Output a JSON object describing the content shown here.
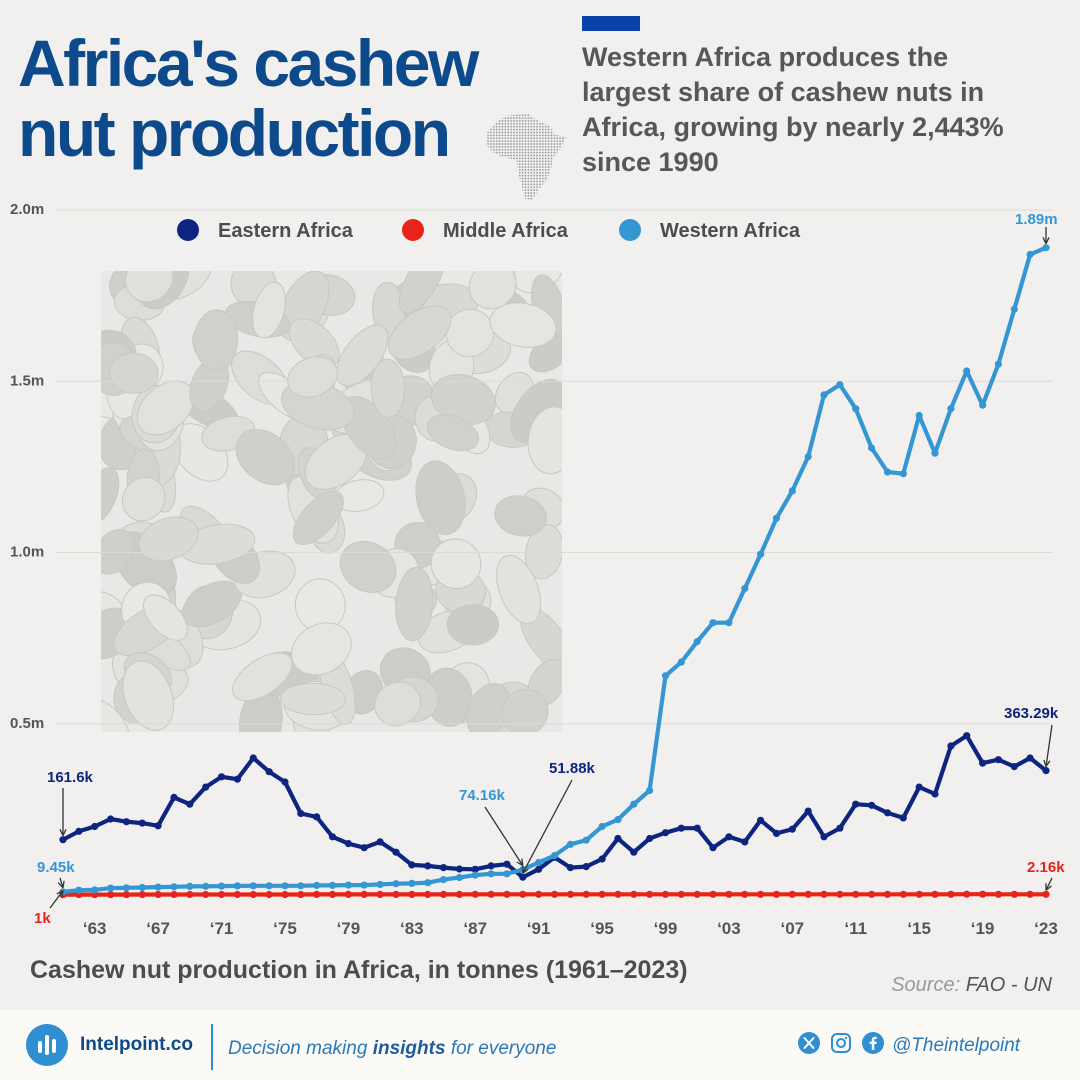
{
  "header": {
    "title_line1": "Africa's cashew",
    "title_line2": "nut production",
    "subtitle_line1": "Western Africa produces the",
    "subtitle_line2": "largest share of cashew nuts in",
    "subtitle_line3": "Africa, growing by nearly 2,443%",
    "subtitle_line4": "since 1990"
  },
  "chart_data": {
    "type": "line",
    "title": "Africa's cashew nut production",
    "subtitle": "Western Africa produces the largest share of cashew nuts in Africa, growing by nearly 2,443% since 1990",
    "caption": "Cashew nut production in Africa, in tonnes (1961–2023)",
    "x_start": 1961,
    "x_end": 2023,
    "ylim": [
      0,
      2000000
    ],
    "yticks": [
      {
        "value": 500000,
        "label": "0.5m"
      },
      {
        "value": 1000000,
        "label": "1.0m"
      },
      {
        "value": 1500000,
        "label": "1.5m"
      },
      {
        "value": 2000000,
        "label": "2.0m"
      }
    ],
    "xticks": [
      {
        "year": 1963,
        "label": "‘63"
      },
      {
        "year": 1967,
        "label": "‘67"
      },
      {
        "year": 1971,
        "label": "‘71"
      },
      {
        "year": 1975,
        "label": "‘75"
      },
      {
        "year": 1979,
        "label": "‘79"
      },
      {
        "year": 1983,
        "label": "‘83"
      },
      {
        "year": 1987,
        "label": "‘87"
      },
      {
        "year": 1991,
        "label": "‘91"
      },
      {
        "year": 1995,
        "label": "‘95"
      },
      {
        "year": 1999,
        "label": "‘99"
      },
      {
        "year": 2003,
        "label": "‘03"
      },
      {
        "year": 2007,
        "label": "‘07"
      },
      {
        "year": 2011,
        "label": "‘11"
      },
      {
        "year": 2015,
        "label": "‘15"
      },
      {
        "year": 2019,
        "label": "‘19"
      },
      {
        "year": 2023,
        "label": "‘23"
      }
    ],
    "grid": true,
    "legend_position": "top",
    "series": [
      {
        "name": "Eastern Africa",
        "color": "#0d2480",
        "values": [
          161600,
          186000,
          200000,
          222000,
          214000,
          210000,
          202000,
          285000,
          265000,
          315000,
          345000,
          338000,
          400000,
          360000,
          330000,
          238000,
          228000,
          170000,
          150000,
          138000,
          155000,
          125000,
          88000,
          85000,
          80000,
          76000,
          75000,
          85000,
          90000,
          51880,
          75000,
          110000,
          80000,
          83000,
          105000,
          165000,
          125000,
          165000,
          182000,
          195000,
          195000,
          138000,
          170000,
          155000,
          218000,
          180000,
          192000,
          245000,
          170000,
          195000,
          265000,
          262000,
          240000,
          225000,
          315000,
          295000,
          435000,
          465000,
          385000,
          395000,
          375000,
          400000,
          363290
        ]
      },
      {
        "name": "Middle Africa",
        "color": "#e8231c",
        "values": [
          1000,
          1100,
          1200,
          1300,
          1300,
          1400,
          1400,
          1500,
          1500,
          1500,
          1500,
          1600,
          1600,
          1600,
          1600,
          1600,
          1700,
          1700,
          1700,
          1700,
          1700,
          1800,
          1800,
          1800,
          1800,
          1800,
          1900,
          1900,
          1900,
          1900,
          1900,
          2000,
          2000,
          2000,
          2000,
          2000,
          2000,
          2100,
          2100,
          2100,
          2100,
          2100,
          2100,
          2100,
          2100,
          2100,
          2100,
          2100,
          2100,
          2100,
          2100,
          2100,
          2100,
          2100,
          2100,
          2100,
          2100,
          2200,
          2200,
          2160,
          2160,
          2160,
          2160
        ]
      },
      {
        "name": "Western Africa",
        "color": "#3596d4",
        "values": [
          9450,
          14000,
          15000,
          20000,
          21000,
          22000,
          23000,
          24000,
          25000,
          25500,
          26000,
          26500,
          27000,
          27000,
          27000,
          27000,
          28000,
          28000,
          29000,
          29000,
          31000,
          33000,
          34000,
          36000,
          45000,
          51000,
          58000,
          62000,
          62000,
          74160,
          95000,
          115000,
          148000,
          160000,
          200000,
          220000,
          265000,
          305000,
          640000,
          680000,
          740000,
          795000,
          795000,
          895000,
          995000,
          1100000,
          1180000,
          1280000,
          1460000,
          1490000,
          1420000,
          1305000,
          1235000,
          1230000,
          1400000,
          1290000,
          1420000,
          1530000,
          1430000,
          1550000,
          1710000,
          1870000,
          1890000
        ]
      }
    ],
    "annotations": [
      {
        "series": 0,
        "year": 1961,
        "label": "161.6k"
      },
      {
        "series": 1,
        "year": 1961,
        "label": "1k"
      },
      {
        "series": 2,
        "year": 1961,
        "label": "9.45k"
      },
      {
        "series": 2,
        "year": 1990,
        "label": "74.16k"
      },
      {
        "series": 0,
        "year": 1990,
        "label": "51.88k"
      },
      {
        "series": 2,
        "year": 2023,
        "label": "1.89m"
      },
      {
        "series": 0,
        "year": 2023,
        "label": "363.29k"
      },
      {
        "series": 1,
        "year": 2023,
        "label": "2.16k"
      }
    ]
  },
  "source": {
    "label": "Source:",
    "value": "FAO - UN"
  },
  "footer": {
    "brand": "Intelpoint.co",
    "tagline_before": "Decision making",
    "tagline_bold": "insights",
    "tagline_after": "for everyone",
    "handle": "@Theintelpoint",
    "icons": [
      "bars-logo-icon",
      "x-icon",
      "instagram-icon",
      "facebook-icon"
    ]
  }
}
